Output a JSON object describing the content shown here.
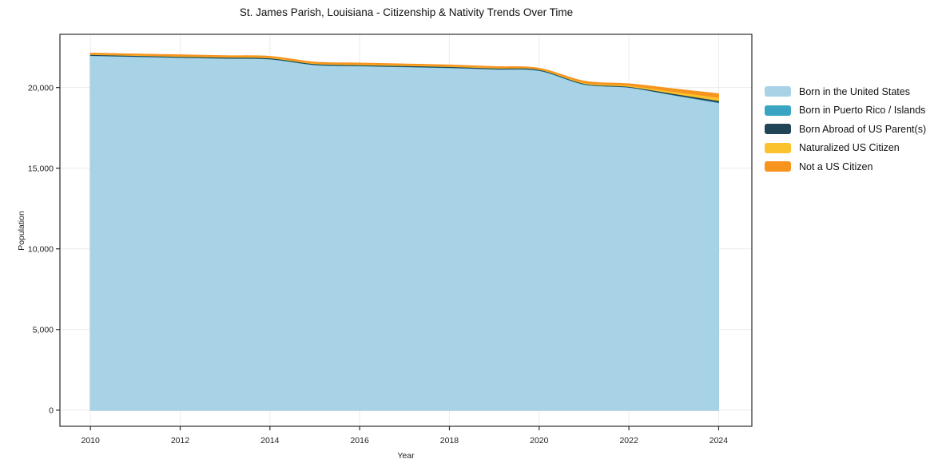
{
  "chart_data": {
    "type": "area",
    "stacked": true,
    "title": "St. James Parish, Louisiana - Citizenship & Nativity Trends Over Time",
    "xlabel": "Year",
    "ylabel": "Population",
    "grid": true,
    "legend_position": "right",
    "x": [
      2010,
      2011,
      2012,
      2013,
      2014,
      2015,
      2016,
      2017,
      2018,
      2019,
      2020,
      2021,
      2022,
      2023,
      2024
    ],
    "series": [
      {
        "name": "Born in the United States",
        "color": "#a8d2e6",
        "values": [
          21930,
          21870,
          21810,
          21760,
          21715,
          21360,
          21290,
          21235,
          21180,
          21090,
          21000,
          20150,
          19960,
          19480,
          19010
        ]
      },
      {
        "name": "Born in Puerto Rico / Islands",
        "color": "#39a5c2",
        "values": [
          15,
          15,
          15,
          15,
          15,
          15,
          15,
          15,
          15,
          15,
          15,
          15,
          15,
          20,
          30
        ]
      },
      {
        "name": "Born Abroad of US Parent(s)",
        "color": "#1f4557",
        "values": [
          55,
          55,
          55,
          55,
          55,
          55,
          55,
          60,
          60,
          55,
          55,
          45,
          40,
          75,
          105
        ]
      },
      {
        "name": "Naturalized US Citizen",
        "color": "#fcc22d",
        "values": [
          25,
          25,
          30,
          30,
          35,
          35,
          40,
          35,
          30,
          30,
          30,
          55,
          65,
          130,
          200
        ]
      },
      {
        "name": "Not a US Citizen",
        "color": "#f7941e",
        "values": [
          115,
          115,
          120,
          115,
          115,
          115,
          120,
          115,
          115,
          110,
          100,
          135,
          150,
          215,
          270
        ]
      }
    ],
    "totals_by_year": [
      22140,
      22080,
      22030,
      21975,
      21935,
      21580,
      21520,
      21460,
      21400,
      21300,
      21200,
      20400,
      20230,
      19920,
      19615
    ],
    "xticks": {
      "values": [
        2010,
        2012,
        2014,
        2016,
        2018,
        2020,
        2022,
        2024
      ],
      "labels": [
        "2010",
        "2012",
        "2014",
        "2016",
        "2018",
        "2020",
        "2022",
        "2024"
      ]
    },
    "yticks": {
      "values": [
        0,
        5000,
        10000,
        15000,
        20000
      ],
      "labels": [
        "0",
        "5,000",
        "10,000",
        "15,000",
        "20,000"
      ]
    },
    "xlim": [
      2009.32,
      2024.74
    ],
    "ylim": [
      -1000,
      23300
    ],
    "colors": {
      "grid": "#ececec",
      "frame": "#2a2a2a",
      "background": "#ffffff"
    }
  }
}
